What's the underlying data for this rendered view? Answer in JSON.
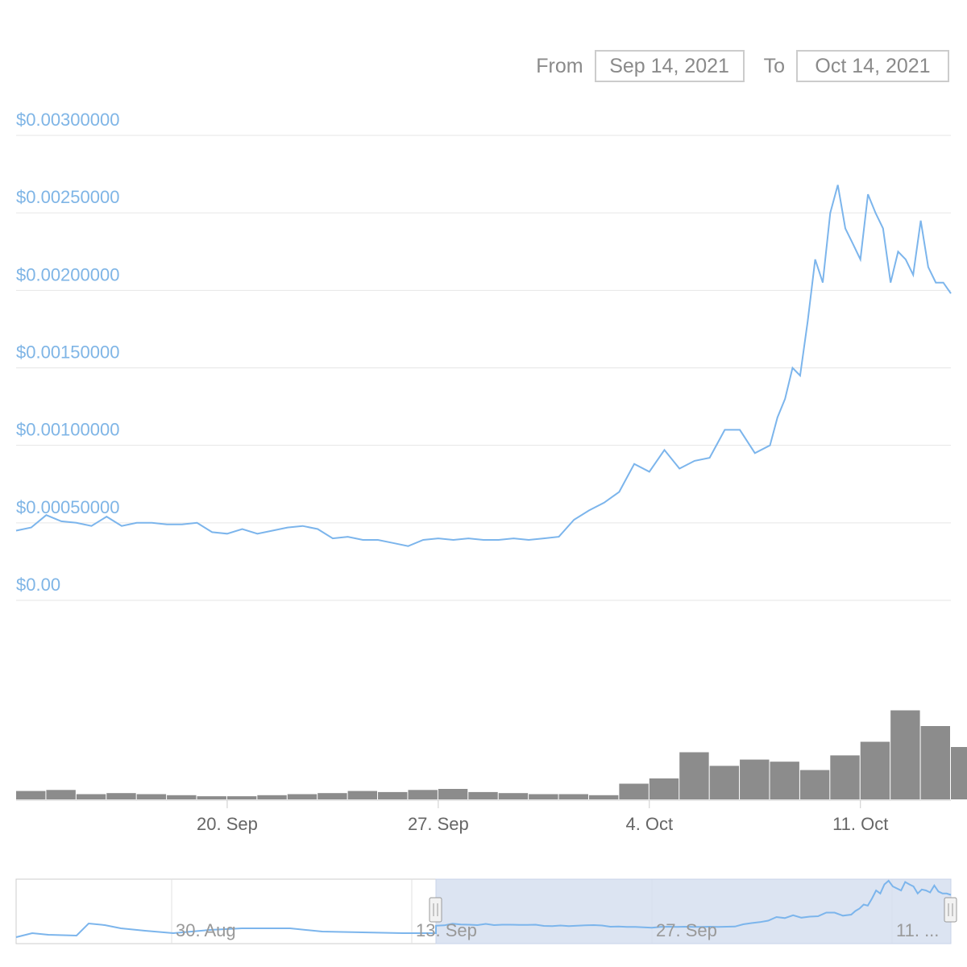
{
  "range_selector": {
    "from_label": "From",
    "from_value": "Sep 14, 2021",
    "to_label": "To",
    "to_value": "Oct 14, 2021"
  },
  "chart_data": {
    "type": "line",
    "x_range": [
      "2021-09-13T00:00",
      "2021-10-14T00:00"
    ],
    "ylim": [
      0,
      0.003
    ],
    "y_ticks": [
      0,
      0.0005,
      0.001,
      0.0015,
      0.002,
      0.0025,
      0.003
    ],
    "y_tick_labels": [
      "$0.00",
      "$0.00050000",
      "$0.00100000",
      "$0.00150000",
      "$0.00200000",
      "$0.00250000",
      "$0.00300000"
    ],
    "x_ticks": [
      "2021-09-20",
      "2021-09-27",
      "2021-10-04",
      "2021-10-11"
    ],
    "x_tick_labels": [
      "20. Sep",
      "27. Sep",
      "4. Oct",
      "11. Oct"
    ],
    "grid": true,
    "colors": {
      "price_line": "#7cb5ec",
      "volume_bars": "#8c8c8c",
      "navigator_mask": "#d6dff0"
    },
    "series": [
      {
        "x": [
          "2021-09-13T00:00",
          "2021-09-13T12:00",
          "2021-09-14T00:00",
          "2021-09-14T12:00",
          "2021-09-15T00:00",
          "2021-09-15T12:00",
          "2021-09-16T00:00",
          "2021-09-16T12:00",
          "2021-09-17T00:00",
          "2021-09-17T12:00",
          "2021-09-18T00:00",
          "2021-09-18T12:00",
          "2021-09-19T00:00",
          "2021-09-19T12:00",
          "2021-09-20T00:00",
          "2021-09-20T12:00",
          "2021-09-21T00:00",
          "2021-09-21T12:00",
          "2021-09-22T00:00",
          "2021-09-22T12:00",
          "2021-09-23T00:00",
          "2021-09-23T12:00",
          "2021-09-24T00:00",
          "2021-09-24T12:00",
          "2021-09-25T00:00",
          "2021-09-25T12:00",
          "2021-09-26T00:00",
          "2021-09-26T12:00",
          "2021-09-27T00:00",
          "2021-09-27T12:00",
          "2021-09-28T00:00",
          "2021-09-28T12:00",
          "2021-09-29T00:00",
          "2021-09-29T12:00",
          "2021-09-30T00:00",
          "2021-09-30T12:00",
          "2021-10-01T00:00",
          "2021-10-01T12:00",
          "2021-10-02T00:00",
          "2021-10-02T12:00",
          "2021-10-03T00:00",
          "2021-10-03T12:00",
          "2021-10-04T00:00",
          "2021-10-04T12:00",
          "2021-10-05T00:00",
          "2021-10-05T12:00",
          "2021-10-06T00:00",
          "2021-10-06T12:00",
          "2021-10-07T00:00",
          "2021-10-07T12:00",
          "2021-10-08T00:00",
          "2021-10-08T06:00",
          "2021-10-08T12:00",
          "2021-10-08T18:00",
          "2021-10-09T00:00",
          "2021-10-09T06:00",
          "2021-10-09T12:00",
          "2021-10-09T18:00",
          "2021-10-10T00:00",
          "2021-10-10T06:00",
          "2021-10-10T12:00",
          "2021-10-10T18:00",
          "2021-10-11T00:00",
          "2021-10-11T06:00",
          "2021-10-11T12:00",
          "2021-10-11T18:00",
          "2021-10-12T00:00",
          "2021-10-12T06:00",
          "2021-10-12T12:00",
          "2021-10-12T18:00",
          "2021-10-13T00:00",
          "2021-10-13T06:00",
          "2021-10-13T12:00",
          "2021-10-13T18:00",
          "2021-10-14T00:00"
        ],
        "values": [
          0.00045,
          0.00047,
          0.00055,
          0.00051,
          0.0005,
          0.00048,
          0.00054,
          0.00048,
          0.0005,
          0.0005,
          0.00049,
          0.00049,
          0.0005,
          0.00044,
          0.00043,
          0.00046,
          0.00043,
          0.00045,
          0.00047,
          0.00048,
          0.00046,
          0.0004,
          0.00041,
          0.00039,
          0.00039,
          0.00037,
          0.00035,
          0.00039,
          0.0004,
          0.00039,
          0.0004,
          0.00039,
          0.00039,
          0.0004,
          0.00039,
          0.0004,
          0.00041,
          0.00052,
          0.00058,
          0.00063,
          0.0007,
          0.00088,
          0.00083,
          0.00097,
          0.00085,
          0.0009,
          0.00092,
          0.0011,
          0.0011,
          0.00095,
          0.001,
          0.00118,
          0.0013,
          0.0015,
          0.00145,
          0.0018,
          0.0022,
          0.00205,
          0.0025,
          0.00268,
          0.0024,
          0.0023,
          0.0022,
          0.00262,
          0.0025,
          0.0024,
          0.00205,
          0.00225,
          0.0022,
          0.0021,
          0.00245,
          0.00215,
          0.00205,
          0.00205,
          0.00198
        ]
      }
    ],
    "volume": {
      "x": [
        "2021-09-13",
        "2021-09-14",
        "2021-09-15",
        "2021-09-16",
        "2021-09-17",
        "2021-09-18",
        "2021-09-19",
        "2021-09-20",
        "2021-09-21",
        "2021-09-22",
        "2021-09-23",
        "2021-09-24",
        "2021-09-25",
        "2021-09-26",
        "2021-09-27",
        "2021-09-28",
        "2021-09-29",
        "2021-09-30",
        "2021-10-01",
        "2021-10-02",
        "2021-10-03",
        "2021-10-04",
        "2021-10-05",
        "2021-10-06",
        "2021-10-07",
        "2021-10-08",
        "2021-10-09",
        "2021-10-10",
        "2021-10-11",
        "2021-10-12",
        "2021-10-13",
        "2021-10-14"
      ],
      "values": [
        0.08,
        0.09,
        0.05,
        0.06,
        0.05,
        0.04,
        0.03,
        0.03,
        0.04,
        0.05,
        0.06,
        0.08,
        0.07,
        0.09,
        0.1,
        0.07,
        0.06,
        0.05,
        0.05,
        0.04,
        0.15,
        0.2,
        0.45,
        0.32,
        0.38,
        0.36,
        0.28,
        0.42,
        0.55,
        0.85,
        0.7,
        0.5
      ]
    },
    "navigator": {
      "x_tick_labels": [
        "30. Aug",
        "13. Sep",
        "27. Sep",
        "11. ..."
      ]
    }
  }
}
